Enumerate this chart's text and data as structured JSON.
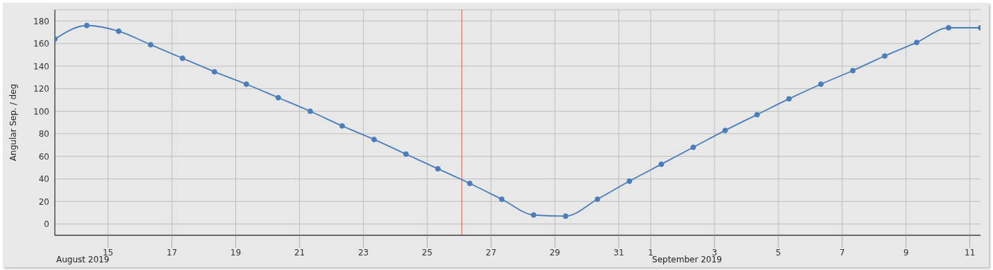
{
  "chart_data": {
    "type": "line",
    "ylabel": "Angular Sep. / deg",
    "x": [
      "2019-08-13T08:00",
      "2019-08-14T08:00",
      "2019-08-15T08:00",
      "2019-08-16T08:00",
      "2019-08-17T08:00",
      "2019-08-18T08:00",
      "2019-08-19T08:00",
      "2019-08-20T08:00",
      "2019-08-21T08:00",
      "2019-08-22T08:00",
      "2019-08-23T08:00",
      "2019-08-24T08:00",
      "2019-08-25T08:00",
      "2019-08-26T08:00",
      "2019-08-27T08:00",
      "2019-08-28T08:00",
      "2019-08-29T08:00",
      "2019-08-30T08:00",
      "2019-08-31T08:00",
      "2019-09-01T08:00",
      "2019-09-02T08:00",
      "2019-09-03T08:00",
      "2019-09-04T08:00",
      "2019-09-05T08:00",
      "2019-09-06T08:00",
      "2019-09-07T08:00",
      "2019-09-08T08:00",
      "2019-09-09T08:00",
      "2019-09-10T08:00",
      "2019-09-11T08:00"
    ],
    "series": [
      {
        "color": "#4a7ebb",
        "values": [
          164,
          176,
          171,
          159,
          147,
          135,
          124,
          112,
          100,
          87,
          75,
          62,
          49,
          36,
          22,
          8,
          7,
          22,
          38,
          53,
          68,
          83,
          97,
          111,
          124,
          136,
          149,
          161,
          174,
          174
        ]
      }
    ],
    "xlim": [
      "2019-08-13T08:00",
      "2019-09-11T08:00"
    ],
    "xticks": [
      {
        "value": "2019-08-15",
        "label": "15"
      },
      {
        "value": "2019-08-17",
        "label": "17"
      },
      {
        "value": "2019-08-19",
        "label": "19"
      },
      {
        "value": "2019-08-21",
        "label": "21"
      },
      {
        "value": "2019-08-23",
        "label": "23"
      },
      {
        "value": "2019-08-25",
        "label": "25"
      },
      {
        "value": "2019-08-27",
        "label": "27"
      },
      {
        "value": "2019-08-29",
        "label": "29"
      },
      {
        "value": "2019-08-31",
        "label": "31"
      },
      {
        "value": "2019-09-01",
        "label": "1"
      },
      {
        "value": "2019-09-03",
        "label": "3"
      },
      {
        "value": "2019-09-05",
        "label": "5"
      },
      {
        "value": "2019-09-07",
        "label": "7"
      },
      {
        "value": "2019-09-09",
        "label": "9"
      },
      {
        "value": "2019-09-11",
        "label": "11"
      }
    ],
    "ylim": [
      -10,
      190
    ],
    "yticks": [
      0,
      20,
      40,
      60,
      80,
      100,
      120,
      140,
      160,
      180
    ],
    "ref_lines": [
      {
        "axis": "x",
        "value": "2019-08-26T02:00",
        "color": "#f07f6e"
      }
    ],
    "annotations": [
      "August 2019",
      "September 2019"
    ],
    "grid": true,
    "marker": "circle",
    "line_style": "solid"
  }
}
